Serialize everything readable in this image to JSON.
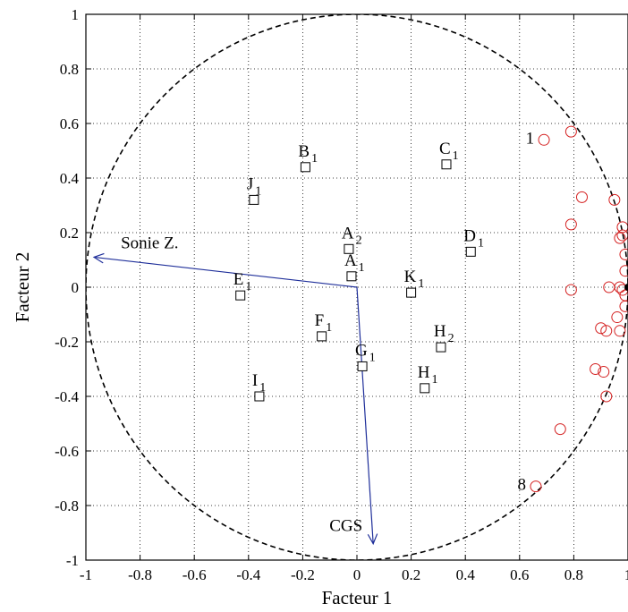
{
  "chart_data": {
    "type": "scatter",
    "xlabel": "Facteur 1",
    "ylabel": "Facteur 2",
    "xlim": [
      -1,
      1
    ],
    "ylim": [
      -1,
      1
    ],
    "xticks": [
      "-1",
      "-0.8",
      "-0.6",
      "-0.4",
      "-0.2",
      "0",
      "0.2",
      "0.4",
      "0.6",
      "0.8",
      "1"
    ],
    "yticks": [
      "-1",
      "-0.8",
      "-0.6",
      "-0.4",
      "-0.2",
      "0",
      "0.2",
      "0.4",
      "0.6",
      "0.8",
      "1"
    ],
    "grid": true,
    "unit_circle": true,
    "vectors": [
      {
        "label": "Sonie Z.",
        "x": -0.97,
        "y": 0.11
      },
      {
        "label": "CGS",
        "x": 0.06,
        "y": -0.94
      }
    ],
    "points": [
      {
        "main": "B",
        "sub": "1",
        "x": -0.19,
        "y": 0.44
      },
      {
        "main": "C",
        "sub": "1",
        "x": 0.33,
        "y": 0.45
      },
      {
        "main": "J",
        "sub": "1",
        "x": -0.38,
        "y": 0.32
      },
      {
        "main": "A",
        "sub": "2",
        "x": -0.03,
        "y": 0.14
      },
      {
        "main": "D",
        "sub": "1",
        "x": 0.42,
        "y": 0.13
      },
      {
        "main": "A",
        "sub": "1",
        "x": -0.02,
        "y": 0.04
      },
      {
        "main": "K",
        "sub": "1",
        "x": 0.2,
        "y": -0.02
      },
      {
        "main": "E",
        "sub": "1",
        "x": -0.43,
        "y": -0.03
      },
      {
        "main": "F",
        "sub": "1",
        "x": -0.13,
        "y": -0.18
      },
      {
        "main": "G",
        "sub": "1",
        "x": 0.02,
        "y": -0.29
      },
      {
        "main": "H",
        "sub": "2",
        "x": 0.31,
        "y": -0.22
      },
      {
        "main": "I",
        "sub": "1",
        "x": -0.36,
        "y": -0.4
      },
      {
        "main": "H",
        "sub": "1",
        "x": 0.25,
        "y": -0.37
      }
    ],
    "circle_points": [
      {
        "x": 0.69,
        "y": 0.54,
        "label": "1"
      },
      {
        "x": 0.79,
        "y": 0.57
      },
      {
        "x": 0.83,
        "y": 0.33
      },
      {
        "x": 0.79,
        "y": 0.23
      },
      {
        "x": 0.79,
        "y": -0.01
      },
      {
        "x": 0.95,
        "y": 0.32
      },
      {
        "x": 0.98,
        "y": 0.22
      },
      {
        "x": 0.98,
        "y": 0.19
      },
      {
        "x": 0.97,
        "y": 0.18
      },
      {
        "x": 0.99,
        "y": 0.12
      },
      {
        "x": 0.99,
        "y": 0.06
      },
      {
        "x": 0.97,
        "y": 0.0
      },
      {
        "x": 0.98,
        "y": -0.01
      },
      {
        "x": 0.99,
        "y": -0.03
      },
      {
        "x": 0.93,
        "y": 0.0
      },
      {
        "x": 0.99,
        "y": -0.07
      },
      {
        "x": 0.96,
        "y": -0.11
      },
      {
        "x": 0.97,
        "y": -0.16
      },
      {
        "x": 0.9,
        "y": -0.15
      },
      {
        "x": 0.92,
        "y": -0.16
      },
      {
        "x": 0.88,
        "y": -0.3
      },
      {
        "x": 0.91,
        "y": -0.31
      },
      {
        "x": 0.92,
        "y": -0.4
      },
      {
        "x": 0.75,
        "y": -0.52
      },
      {
        "x": 0.66,
        "y": -0.73,
        "label": "8"
      }
    ],
    "filled_points": [
      {
        "x": 1.0,
        "y": 0.0
      }
    ],
    "colors": {
      "vectors": "#1f2f9a",
      "circle_points": "#d42020",
      "markers": "#000000"
    }
  }
}
